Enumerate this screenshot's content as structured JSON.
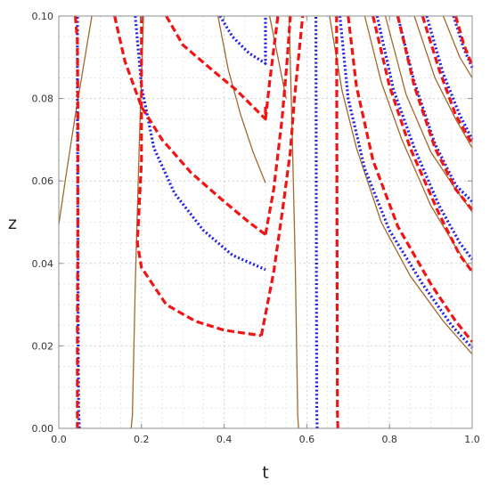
{
  "chart_data": {
    "type": "line",
    "xlabel": "t",
    "ylabel": "z",
    "xlim": [
      0.0,
      1.0
    ],
    "ylim": [
      0.0,
      0.1
    ],
    "xticks": [
      "0.0",
      "0.2",
      "0.4",
      "0.6",
      "0.8",
      "1.0"
    ],
    "yticks": [
      "0.00",
      "0.02",
      "0.04",
      "0.06",
      "0.08",
      "0.10"
    ],
    "grid": true,
    "series": [
      {
        "style": "solid",
        "color": "#a0692e",
        "segments": [
          [
            [
              0.0,
              0.0495
            ],
            [
              0.02,
              0.063
            ],
            [
              0.04,
              0.076
            ],
            [
              0.06,
              0.088
            ],
            [
              0.08,
              0.1
            ]
          ],
          [
            [
              0.175,
              0.0
            ],
            [
              0.178,
              0.003
            ],
            [
              0.185,
              0.035
            ],
            [
              0.195,
              0.07
            ],
            [
              0.205,
              0.1
            ]
          ],
          [
            [
              0.385,
              0.1
            ],
            [
              0.41,
              0.087
            ],
            [
              0.44,
              0.076
            ],
            [
              0.47,
              0.067
            ],
            [
              0.5,
              0.0595
            ]
          ],
          [
            [
              0.51,
              0.1
            ],
            [
              0.53,
              0.09
            ],
            [
              0.55,
              0.08
            ]
          ],
          [
            [
              0.58,
              0.0
            ],
            [
              0.578,
              0.003
            ],
            [
              0.572,
              0.04
            ],
            [
              0.565,
              0.07
            ],
            [
              0.557,
              0.1
            ]
          ],
          [
            [
              0.655,
              0.1
            ],
            [
              0.685,
              0.082
            ],
            [
              0.72,
              0.068
            ],
            [
              0.78,
              0.05
            ],
            [
              0.85,
              0.037
            ],
            [
              0.93,
              0.026
            ],
            [
              1.0,
              0.018
            ]
          ],
          [
            [
              0.74,
              0.1
            ],
            [
              0.78,
              0.084
            ],
            [
              0.83,
              0.07
            ],
            [
              0.9,
              0.054
            ],
            [
              0.96,
              0.044
            ],
            [
              1.0,
              0.038
            ]
          ],
          [
            [
              0.79,
              0.1
            ],
            [
              0.84,
              0.081
            ],
            [
              0.9,
              0.067
            ],
            [
              0.96,
              0.058
            ],
            [
              1.0,
              0.0525
            ]
          ],
          [
            [
              0.86,
              0.1
            ],
            [
              0.91,
              0.085
            ],
            [
              0.96,
              0.075
            ],
            [
              1.0,
              0.068
            ]
          ],
          [
            [
              0.93,
              0.1
            ],
            [
              0.97,
              0.09
            ],
            [
              1.0,
              0.085
            ]
          ]
        ]
      },
      {
        "style": "dotted",
        "color": "#1f1fe8",
        "segments": [
          [
            [
              0.05,
              0.0
            ],
            [
              0.048,
              0.004
            ],
            [
              0.047,
              0.02
            ],
            [
              0.046,
              0.05
            ],
            [
              0.045,
              0.08
            ],
            [
              0.045,
              0.1
            ]
          ],
          [
            [
              0.185,
              0.1
            ],
            [
              0.2,
              0.083
            ],
            [
              0.23,
              0.068
            ],
            [
              0.28,
              0.057
            ],
            [
              0.35,
              0.048
            ],
            [
              0.42,
              0.042
            ],
            [
              0.5,
              0.0385
            ]
          ],
          [
            [
              0.39,
              0.1
            ],
            [
              0.42,
              0.095
            ],
            [
              0.46,
              0.091
            ],
            [
              0.5,
              0.0885
            ],
            [
              0.5,
              0.1
            ]
          ],
          [
            [
              0.625,
              0.0
            ],
            [
              0.624,
              0.004
            ],
            [
              0.623,
              0.05
            ],
            [
              0.622,
              0.1
            ]
          ],
          [
            [
              0.68,
              0.1
            ],
            [
              0.7,
              0.08
            ],
            [
              0.74,
              0.063
            ],
            [
              0.8,
              0.048
            ],
            [
              0.88,
              0.035
            ],
            [
              0.95,
              0.025
            ],
            [
              1.0,
              0.0195
            ]
          ],
          [
            [
              0.77,
              0.1
            ],
            [
              0.81,
              0.082
            ],
            [
              0.86,
              0.068
            ],
            [
              0.92,
              0.054
            ],
            [
              0.97,
              0.045
            ],
            [
              1.0,
              0.041
            ]
          ],
          [
            [
              0.82,
              0.1
            ],
            [
              0.86,
              0.084
            ],
            [
              0.91,
              0.069
            ],
            [
              0.96,
              0.059
            ],
            [
              1.0,
              0.055
            ]
          ],
          [
            [
              0.89,
              0.1
            ],
            [
              0.93,
              0.086
            ],
            [
              0.97,
              0.076
            ],
            [
              1.0,
              0.07
            ]
          ],
          [
            [
              0.955,
              0.1
            ],
            [
              0.98,
              0.092
            ],
            [
              1.0,
              0.0875
            ]
          ]
        ]
      },
      {
        "style": "dashed",
        "color": "#f01414",
        "segments": [
          [
            [
              0.04,
              0.1
            ],
            [
              0.045,
              0.094
            ],
            [
              0.046,
              0.08
            ],
            [
              0.046,
              0.05
            ],
            [
              0.045,
              0.025
            ],
            [
              0.045,
              0.0
            ]
          ],
          [
            [
              0.135,
              0.1
            ],
            [
              0.16,
              0.089
            ],
            [
              0.2,
              0.078
            ],
            [
              0.25,
              0.07
            ],
            [
              0.32,
              0.062
            ],
            [
              0.4,
              0.055
            ],
            [
              0.46,
              0.05
            ],
            [
              0.5,
              0.047
            ]
          ],
          [
            [
              0.5,
              0.047
            ],
            [
              0.52,
              0.058
            ],
            [
              0.54,
              0.075
            ],
            [
              0.553,
              0.09
            ],
            [
              0.56,
              0.1
            ]
          ],
          [
            [
              0.2,
              0.1
            ],
            [
              0.2,
              0.065
            ],
            [
              0.19,
              0.045
            ],
            [
              0.2,
              0.039
            ],
            [
              0.26,
              0.03
            ],
            [
              0.33,
              0.026
            ],
            [
              0.4,
              0.0238
            ],
            [
              0.49,
              0.0225
            ]
          ],
          [
            [
              0.49,
              0.0225
            ],
            [
              0.52,
              0.038
            ],
            [
              0.54,
              0.052
            ],
            [
              0.56,
              0.067
            ],
            [
              0.57,
              0.08
            ],
            [
              0.58,
              0.09
            ],
            [
              0.59,
              0.1
            ]
          ],
          [
            [
              0.26,
              0.1
            ],
            [
              0.3,
              0.093
            ],
            [
              0.37,
              0.087
            ],
            [
              0.43,
              0.082
            ],
            [
              0.5,
              0.075
            ],
            [
              0.5,
              0.078
            ]
          ],
          [
            [
              0.5,
              0.075
            ],
            [
              0.51,
              0.084
            ],
            [
              0.52,
              0.092
            ],
            [
              0.53,
              0.1
            ]
          ],
          [
            [
              0.675,
              0.0
            ],
            [
              0.674,
              0.004
            ],
            [
              0.673,
              0.05
            ],
            [
              0.672,
              0.1
            ]
          ],
          [
            [
              0.7,
              0.1
            ],
            [
              0.72,
              0.083
            ],
            [
              0.76,
              0.065
            ],
            [
              0.82,
              0.049
            ],
            [
              0.9,
              0.035
            ],
            [
              0.96,
              0.026
            ],
            [
              1.0,
              0.021
            ]
          ],
          [
            [
              0.76,
              0.1
            ],
            [
              0.8,
              0.083
            ],
            [
              0.85,
              0.068
            ],
            [
              0.92,
              0.052
            ],
            [
              0.97,
              0.042
            ],
            [
              1.0,
              0.038
            ]
          ],
          [
            [
              0.82,
              0.1
            ],
            [
              0.86,
              0.083
            ],
            [
              0.91,
              0.068
            ],
            [
              0.96,
              0.058
            ],
            [
              1.0,
              0.053
            ]
          ],
          [
            [
              0.88,
              0.1
            ],
            [
              0.92,
              0.087
            ],
            [
              0.96,
              0.076
            ],
            [
              1.0,
              0.069
            ]
          ],
          [
            [
              0.96,
              0.1
            ],
            [
              0.98,
              0.093
            ],
            [
              1.0,
              0.088
            ]
          ]
        ]
      }
    ]
  }
}
